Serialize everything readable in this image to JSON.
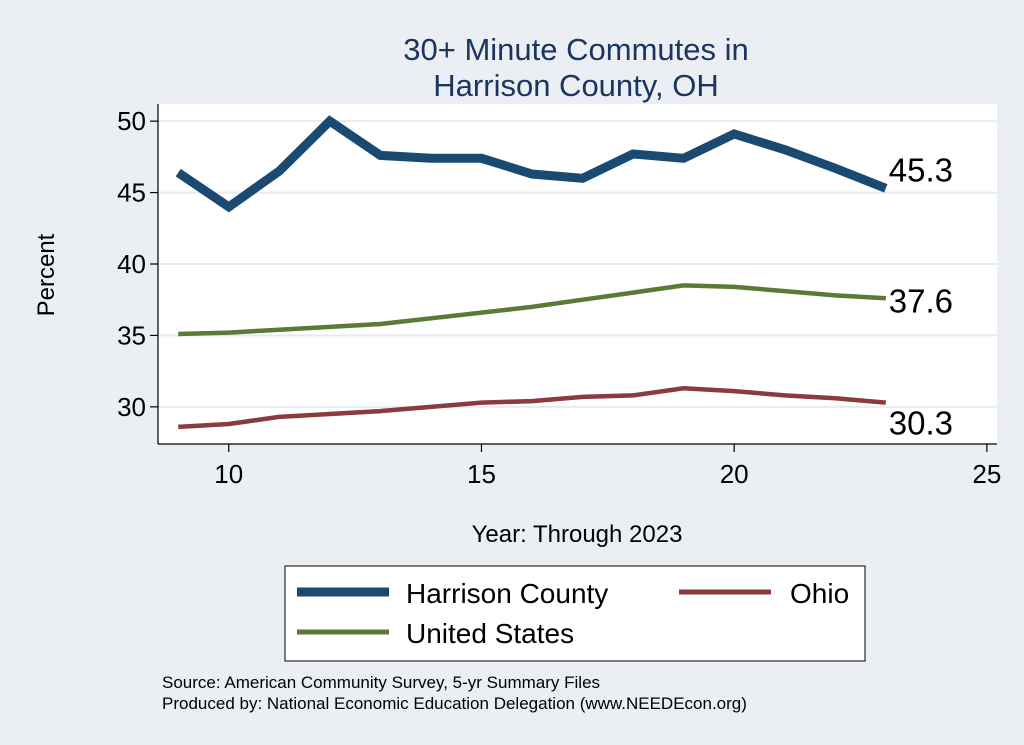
{
  "chart_data": {
    "type": "line",
    "title": [
      "30+ Minute Commutes in",
      "Harrison County, OH"
    ],
    "xlabel": "Year: Through 2023",
    "ylabel": "Percent",
    "xlim": [
      8.6,
      25.2
    ],
    "ylim": [
      27.4,
      51.2
    ],
    "xticks": [
      10,
      15,
      20,
      25
    ],
    "yticks": [
      30,
      35,
      40,
      45,
      50
    ],
    "grid": true,
    "x": [
      9,
      10,
      11,
      12,
      13,
      14,
      15,
      16,
      17,
      18,
      19,
      20,
      21,
      22,
      23
    ],
    "series": [
      {
        "name": "Harrison County",
        "color": "#1a4a72",
        "values": [
          46.4,
          44.0,
          46.5,
          50.0,
          47.6,
          47.4,
          47.4,
          46.3,
          46.0,
          47.7,
          47.4,
          49.1,
          48.0,
          46.7,
          45.3
        ],
        "end_label": "45.3"
      },
      {
        "name": "United States",
        "color": "#5a7a36",
        "values": [
          35.1,
          35.2,
          35.4,
          35.6,
          35.8,
          36.2,
          36.6,
          37.0,
          37.5,
          38.0,
          38.5,
          38.4,
          38.1,
          37.8,
          37.6
        ],
        "end_label": "37.6"
      },
      {
        "name": "Ohio",
        "color": "#8b3a3e",
        "values": [
          28.6,
          28.8,
          29.3,
          29.5,
          29.7,
          30.0,
          30.3,
          30.4,
          30.7,
          30.8,
          31.3,
          31.1,
          30.8,
          30.6,
          30.3
        ],
        "end_label": "30.3"
      }
    ],
    "legend": [
      "Harrison County",
      "Ohio",
      "United States"
    ],
    "legend_position": "bottom",
    "notes": [
      "Source: American Community Survey, 5-yr Summary Files",
      "Produced by: National Economic Education Delegation (www.NEEDEcon.org)"
    ]
  }
}
